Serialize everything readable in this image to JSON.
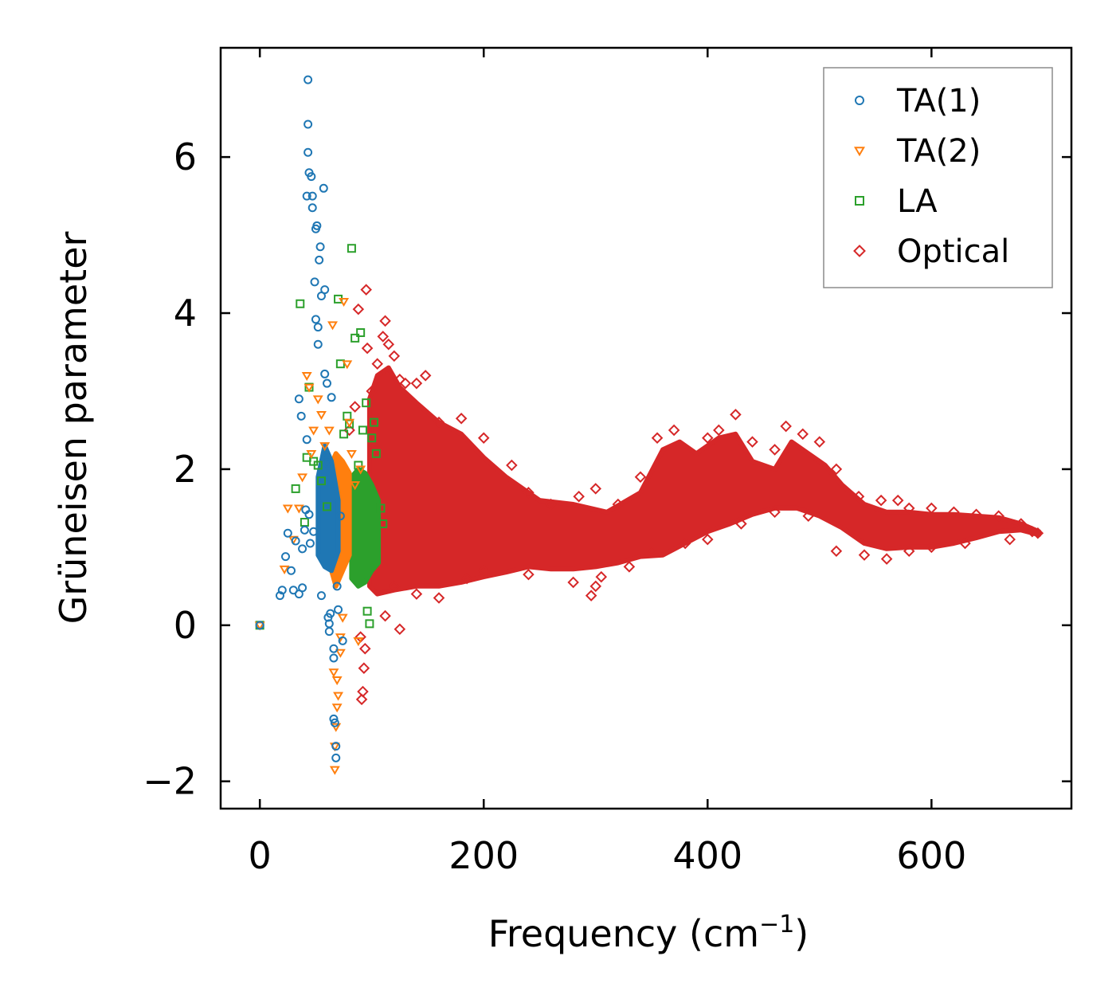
{
  "chart_data": {
    "type": "scatter",
    "xlabel": "Frequency (cm",
    "xlabel_sup": "−1",
    "xlabel_end": ")",
    "ylabel": "Grüneisen parameter",
    "xlim": [
      -35,
      725
    ],
    "ylim": [
      -2.35,
      7.4
    ],
    "x_ticks": [
      0,
      200,
      400,
      600
    ],
    "x_tick_labels": [
      "0",
      "200",
      "400",
      "600"
    ],
    "y_ticks": [
      -2,
      0,
      2,
      4,
      6
    ],
    "y_tick_labels": [
      "−2",
      "0",
      "2",
      "4",
      "6"
    ],
    "legend_position": "top-right",
    "series": [
      {
        "name": "TA(1)",
        "marker": "circle",
        "color": "#1f77b4",
        "points": [
          [
            0,
            0
          ],
          [
            18,
            0.38
          ],
          [
            20,
            0.45
          ],
          [
            23,
            0.88
          ],
          [
            25,
            1.18
          ],
          [
            28,
            0.7
          ],
          [
            30,
            0.45
          ],
          [
            32,
            1.08
          ],
          [
            35,
            0.4
          ],
          [
            35,
            2.9
          ],
          [
            37,
            2.68
          ],
          [
            38,
            0.48
          ],
          [
            38,
            0.98
          ],
          [
            40,
            1.22
          ],
          [
            41,
            1.48
          ],
          [
            42,
            2.38
          ],
          [
            42,
            5.5
          ],
          [
            43,
            6.99
          ],
          [
            43,
            6.42
          ],
          [
            43,
            6.06
          ],
          [
            44,
            5.8
          ],
          [
            44,
            1.42
          ],
          [
            45,
            1.05
          ],
          [
            46,
            5.75
          ],
          [
            47,
            5.5
          ],
          [
            47,
            5.35
          ],
          [
            48,
            1.2
          ],
          [
            49,
            4.4
          ],
          [
            50,
            3.92
          ],
          [
            50,
            5.08
          ],
          [
            51,
            5.12
          ],
          [
            52,
            3.82
          ],
          [
            52,
            3.6
          ],
          [
            53,
            4.68
          ],
          [
            54,
            4.85
          ],
          [
            55,
            4.22
          ],
          [
            55,
            0.38
          ],
          [
            57,
            5.6
          ],
          [
            58,
            4.3
          ],
          [
            58,
            3.22
          ],
          [
            60,
            3.1
          ],
          [
            60,
            2.08
          ],
          [
            61,
            0.1
          ],
          [
            62,
            -0.08
          ],
          [
            62,
            0.02
          ],
          [
            63,
            0.15
          ],
          [
            64,
            2.92
          ],
          [
            66,
            -0.3
          ],
          [
            66,
            -0.42
          ],
          [
            66,
            -1.2
          ],
          [
            67,
            -1.25
          ],
          [
            68,
            -1.55
          ],
          [
            68,
            -1.7
          ],
          [
            69,
            0.5
          ],
          [
            70,
            0.2
          ],
          [
            72,
            1.4
          ],
          [
            74,
            -0.2
          ]
        ]
      },
      {
        "name": "TA(2)",
        "marker": "triangle",
        "color": "#ff7f0e",
        "points": [
          [
            0,
            0
          ],
          [
            22,
            0.72
          ],
          [
            25,
            1.5
          ],
          [
            30,
            1.1
          ],
          [
            35,
            1.5
          ],
          [
            38,
            1.9
          ],
          [
            42,
            3.2
          ],
          [
            44,
            3.05
          ],
          [
            46,
            2.2
          ],
          [
            48,
            2.5
          ],
          [
            52,
            2.9
          ],
          [
            55,
            2.7
          ],
          [
            58,
            2.3
          ],
          [
            62,
            2.5
          ],
          [
            65,
            3.85
          ],
          [
            66,
            -0.6
          ],
          [
            67,
            -1.85
          ],
          [
            67,
            -1.55
          ],
          [
            68,
            -1.3
          ],
          [
            69,
            -1.05
          ],
          [
            69,
            -0.7
          ],
          [
            70,
            -0.9
          ],
          [
            72,
            -0.35
          ],
          [
            72,
            -0.15
          ],
          [
            74,
            0.1
          ],
          [
            75,
            4.15
          ],
          [
            78,
            3.35
          ],
          [
            80,
            2.6
          ],
          [
            82,
            2.2
          ],
          [
            85,
            1.8
          ],
          [
            90,
            2.0
          ],
          [
            88,
            -0.2
          ]
        ]
      },
      {
        "name": "LA",
        "marker": "square",
        "color": "#2ca02c",
        "points": [
          [
            0,
            0
          ],
          [
            32,
            1.75
          ],
          [
            36,
            4.12
          ],
          [
            40,
            1.32
          ],
          [
            42,
            2.15
          ],
          [
            44,
            3.05
          ],
          [
            48,
            2.1
          ],
          [
            52,
            2.05
          ],
          [
            55,
            1.85
          ],
          [
            60,
            1.52
          ],
          [
            70,
            4.18
          ],
          [
            72,
            3.35
          ],
          [
            75,
            2.45
          ],
          [
            78,
            2.68
          ],
          [
            80,
            2.58
          ],
          [
            82,
            4.83
          ],
          [
            85,
            3.68
          ],
          [
            88,
            2.05
          ],
          [
            90,
            3.75
          ],
          [
            92,
            2.5
          ],
          [
            95,
            2.85
          ],
          [
            96,
            0.18
          ],
          [
            98,
            0.02
          ],
          [
            100,
            2.4
          ],
          [
            102,
            2.6
          ],
          [
            104,
            2.2
          ],
          [
            108,
            1.5
          ],
          [
            110,
            1.3
          ]
        ]
      },
      {
        "name": "Optical",
        "marker": "diamond",
        "color": "#d62728",
        "points": [
          [
            80,
            2.5
          ],
          [
            85,
            2.8
          ],
          [
            88,
            4.05
          ],
          [
            90,
            -0.15
          ],
          [
            91,
            -0.95
          ],
          [
            92,
            -0.85
          ],
          [
            93,
            -0.55
          ],
          [
            94,
            -0.3
          ],
          [
            95,
            4.3
          ],
          [
            96,
            3.55
          ],
          [
            100,
            3.0
          ],
          [
            105,
            3.35
          ],
          [
            110,
            3.7
          ],
          [
            112,
            3.9
          ],
          [
            115,
            3.6
          ],
          [
            112,
            0.12
          ],
          [
            120,
            3.45
          ],
          [
            125,
            3.15
          ],
          [
            130,
            3.1
          ],
          [
            140,
            3.1
          ],
          [
            148,
            3.2
          ],
          [
            160,
            2.6
          ],
          [
            180,
            2.65
          ],
          [
            200,
            2.4
          ],
          [
            225,
            2.05
          ],
          [
            240,
            1.7
          ],
          [
            260,
            1.55
          ],
          [
            285,
            1.65
          ],
          [
            300,
            1.75
          ],
          [
            296,
            0.38
          ],
          [
            305,
            0.62
          ],
          [
            320,
            1.55
          ],
          [
            340,
            1.9
          ],
          [
            355,
            2.4
          ],
          [
            370,
            2.5
          ],
          [
            400,
            2.4
          ],
          [
            410,
            2.5
          ],
          [
            425,
            2.7
          ],
          [
            440,
            2.35
          ],
          [
            460,
            2.25
          ],
          [
            470,
            2.55
          ],
          [
            485,
            2.45
          ],
          [
            500,
            2.35
          ],
          [
            515,
            2.0
          ],
          [
            535,
            1.65
          ],
          [
            555,
            1.6
          ],
          [
            570,
            1.6
          ],
          [
            580,
            1.5
          ],
          [
            600,
            1.5
          ],
          [
            620,
            1.45
          ],
          [
            640,
            1.42
          ],
          [
            660,
            1.4
          ],
          [
            680,
            1.3
          ],
          [
            695,
            1.18
          ],
          [
            140,
            0.4
          ],
          [
            160,
            0.35
          ],
          [
            185,
            0.6
          ],
          [
            200,
            0.7
          ],
          [
            240,
            0.65
          ],
          [
            280,
            0.55
          ],
          [
            300,
            0.5
          ],
          [
            330,
            0.75
          ],
          [
            350,
            0.95
          ],
          [
            380,
            1.05
          ],
          [
            400,
            1.1
          ],
          [
            430,
            1.3
          ],
          [
            460,
            1.45
          ],
          [
            490,
            1.4
          ],
          [
            515,
            0.95
          ],
          [
            540,
            0.9
          ],
          [
            560,
            0.85
          ],
          [
            580,
            0.95
          ],
          [
            600,
            1.0
          ],
          [
            630,
            1.05
          ],
          [
            670,
            1.1
          ],
          [
            690,
            1.2
          ],
          [
            120,
            0.5
          ],
          [
            125,
            -0.05
          ]
        ]
      }
    ],
    "bands": [
      {
        "name": "Optical",
        "color": "#d62728",
        "upper": [
          [
            98,
            2.9
          ],
          [
            105,
            3.2
          ],
          [
            115,
            3.3
          ],
          [
            125,
            3.05
          ],
          [
            140,
            2.85
          ],
          [
            160,
            2.6
          ],
          [
            180,
            2.45
          ],
          [
            200,
            2.15
          ],
          [
            220,
            1.9
          ],
          [
            250,
            1.6
          ],
          [
            280,
            1.55
          ],
          [
            310,
            1.45
          ],
          [
            340,
            1.7
          ],
          [
            360,
            2.25
          ],
          [
            375,
            2.35
          ],
          [
            390,
            2.2
          ],
          [
            410,
            2.4
          ],
          [
            425,
            2.45
          ],
          [
            440,
            2.1
          ],
          [
            460,
            2.0
          ],
          [
            475,
            2.35
          ],
          [
            490,
            2.2
          ],
          [
            505,
            2.05
          ],
          [
            520,
            1.8
          ],
          [
            540,
            1.55
          ],
          [
            560,
            1.45
          ],
          [
            580,
            1.45
          ],
          [
            600,
            1.42
          ],
          [
            620,
            1.42
          ],
          [
            640,
            1.4
          ],
          [
            660,
            1.38
          ],
          [
            680,
            1.3
          ],
          [
            696,
            1.2
          ]
        ],
        "lower": [
          [
            696,
            1.16
          ],
          [
            680,
            1.22
          ],
          [
            660,
            1.2
          ],
          [
            640,
            1.12
          ],
          [
            620,
            1.05
          ],
          [
            600,
            1.0
          ],
          [
            580,
            1.0
          ],
          [
            560,
            0.98
          ],
          [
            540,
            1.05
          ],
          [
            520,
            1.25
          ],
          [
            500,
            1.4
          ],
          [
            480,
            1.5
          ],
          [
            460,
            1.5
          ],
          [
            440,
            1.42
          ],
          [
            420,
            1.3
          ],
          [
            400,
            1.2
          ],
          [
            380,
            1.05
          ],
          [
            360,
            0.9
          ],
          [
            340,
            0.88
          ],
          [
            320,
            0.8
          ],
          [
            300,
            0.75
          ],
          [
            280,
            0.72
          ],
          [
            260,
            0.72
          ],
          [
            240,
            0.75
          ],
          [
            220,
            0.68
          ],
          [
            200,
            0.62
          ],
          [
            180,
            0.55
          ],
          [
            160,
            0.5
          ],
          [
            140,
            0.5
          ],
          [
            120,
            0.45
          ],
          [
            105,
            0.4
          ],
          [
            98,
            0.5
          ]
        ]
      },
      {
        "name": "LA",
        "color": "#2ca02c",
        "upper": [
          [
            82,
            1.9
          ],
          [
            88,
            2.0
          ],
          [
            94,
            1.95
          ],
          [
            100,
            1.8
          ],
          [
            106,
            1.6
          ]
        ],
        "lower": [
          [
            106,
            0.8
          ],
          [
            100,
            0.7
          ],
          [
            94,
            0.55
          ],
          [
            88,
            0.5
          ],
          [
            82,
            0.6
          ]
        ]
      },
      {
        "name": "TA(2)",
        "color": "#ff7f0e",
        "upper": [
          [
            62,
            2.0
          ],
          [
            68,
            2.2
          ],
          [
            74,
            2.1
          ],
          [
            80,
            1.95
          ]
        ],
        "lower": [
          [
            80,
            0.9
          ],
          [
            74,
            0.7
          ],
          [
            68,
            0.5
          ],
          [
            62,
            0.8
          ]
        ]
      },
      {
        "name": "TA(1)",
        "color": "#1f77b4",
        "upper": [
          [
            52,
            1.9
          ],
          [
            58,
            2.3
          ],
          [
            64,
            2.1
          ],
          [
            70,
            1.6
          ]
        ],
        "lower": [
          [
            70,
            0.95
          ],
          [
            64,
            0.7
          ],
          [
            58,
            0.75
          ],
          [
            52,
            0.9
          ]
        ]
      }
    ]
  }
}
